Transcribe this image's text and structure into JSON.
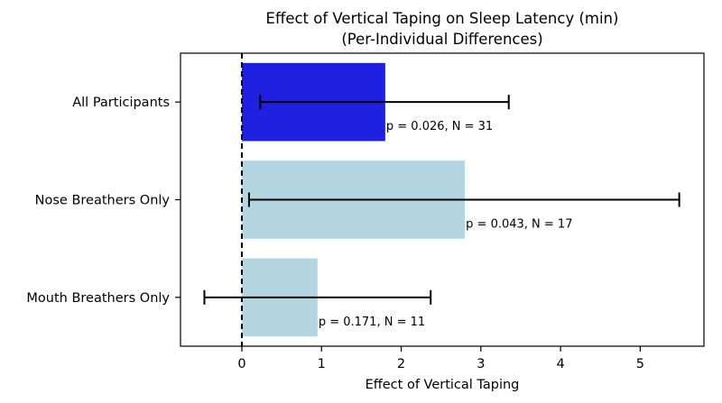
{
  "chart_data": {
    "type": "bar",
    "orientation": "horizontal",
    "title": "Effect of Vertical Taping on Sleep Latency (min)",
    "subtitle": "(Per-Individual Differences)",
    "xlabel": "Effect of Vertical Taping",
    "ylabel": "",
    "xlim": [
      -0.77,
      5.8
    ],
    "xticks": [
      0,
      1,
      2,
      3,
      4,
      5
    ],
    "grid": false,
    "reference_line": {
      "x": 0,
      "style": "dashed"
    },
    "categories": [
      "All Participants",
      "Nose Breathers Only",
      "Mouth Breathers Only"
    ],
    "values": [
      1.8,
      2.8,
      0.95
    ],
    "error_low": [
      0.23,
      0.09,
      -0.47
    ],
    "error_high": [
      3.35,
      5.49,
      2.37
    ],
    "annotations": [
      "p = 0.026, N = 31",
      "p = 0.043, N = 17",
      "p = 0.171, N = 11"
    ],
    "colors": [
      "#2020e0",
      "#b4d6e0",
      "#b4d6e0"
    ],
    "errorbar_color": "#000000"
  }
}
